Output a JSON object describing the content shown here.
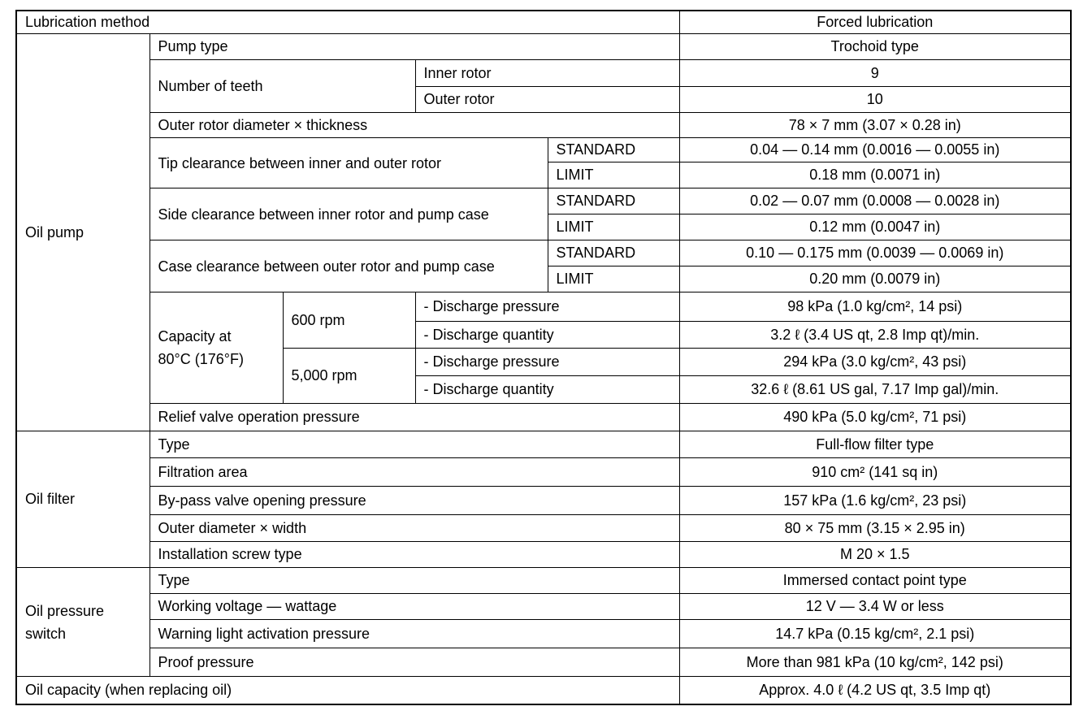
{
  "lubrication": {
    "label": "Lubrication method",
    "value": "Forced lubrication"
  },
  "oil_pump": {
    "label": "Oil pump",
    "pump_type": {
      "label": "Pump type",
      "value": "Trochoid type"
    },
    "teeth": {
      "label": "Number of teeth",
      "inner_label": "Inner rotor",
      "inner_value": "9",
      "outer_label": "Outer rotor",
      "outer_value": "10"
    },
    "outer_rotor": {
      "label": "Outer rotor diameter × thickness",
      "value": "78 × 7 mm (3.07 × 0.28 in)"
    },
    "tip": {
      "label": "Tip clearance between inner and outer rotor",
      "standard_label": "STANDARD",
      "standard": "0.04 — 0.14 mm (0.0016 — 0.0055 in)",
      "limit_label": "LIMIT",
      "limit": "0.18 mm (0.0071 in)"
    },
    "side": {
      "label": "Side clearance between inner rotor and pump case",
      "standard_label": "STANDARD",
      "standard": "0.02 — 0.07 mm (0.0008 — 0.0028 in)",
      "limit_label": "LIMIT",
      "limit": "0.12 mm (0.0047 in)"
    },
    "case": {
      "label": "Case clearance between outer rotor and pump case",
      "standard_label": "STANDARD",
      "standard": "0.10 — 0.175 mm (0.0039 — 0.0069 in)",
      "limit_label": "LIMIT",
      "limit": "0.20 mm (0.0079 in)"
    },
    "capacity": {
      "label": "Capacity at 80°C (176°F)",
      "rpm600": {
        "label": "600 rpm",
        "pressure_label": "- Discharge pressure",
        "pressure": "98 kPa (1.0 kg/cm², 14 psi)",
        "quantity_label": "- Discharge quantity",
        "quantity": "3.2 ℓ (3.4 US qt, 2.8 Imp qt)/min."
      },
      "rpm5000": {
        "label": "5,000 rpm",
        "pressure_label": "- Discharge pressure",
        "pressure": "294 kPa (3.0 kg/cm², 43 psi)",
        "quantity_label": "- Discharge quantity",
        "quantity": "32.6 ℓ (8.61 US gal, 7.17 Imp gal)/min."
      }
    },
    "relief": {
      "label": "Relief valve operation pressure",
      "value": "490 kPa (5.0 kg/cm², 71 psi)"
    }
  },
  "oil_filter": {
    "label": "Oil filter",
    "rows": [
      {
        "label": "Type",
        "value": "Full-flow filter type"
      },
      {
        "label": "Filtration area",
        "value": "910 cm² (141 sq in)"
      },
      {
        "label": "By-pass valve opening pressure",
        "value": "157 kPa (1.6 kg/cm², 23 psi)"
      },
      {
        "label": "Outer diameter × width",
        "value": "80 × 75 mm (3.15 × 2.95 in)"
      },
      {
        "label": "Installation screw type",
        "value": "M 20 × 1.5"
      }
    ]
  },
  "oil_pressure_switch": {
    "label": "Oil pressure switch",
    "rows": [
      {
        "label": "Type",
        "value": "Immersed contact point type"
      },
      {
        "label": "Working voltage — wattage",
        "value": "12 V — 3.4 W or less"
      },
      {
        "label": "Warning light activation pressure",
        "value": "14.7 kPa (0.15 kg/cm², 2.1 psi)"
      },
      {
        "label": "Proof pressure",
        "value": "More than 981 kPa (10 kg/cm², 142 psi)"
      }
    ]
  },
  "oil_capacity": {
    "label": "Oil capacity (when replacing oil)",
    "value": "Approx. 4.0 ℓ (4.2 US qt, 3.5 Imp qt)"
  }
}
